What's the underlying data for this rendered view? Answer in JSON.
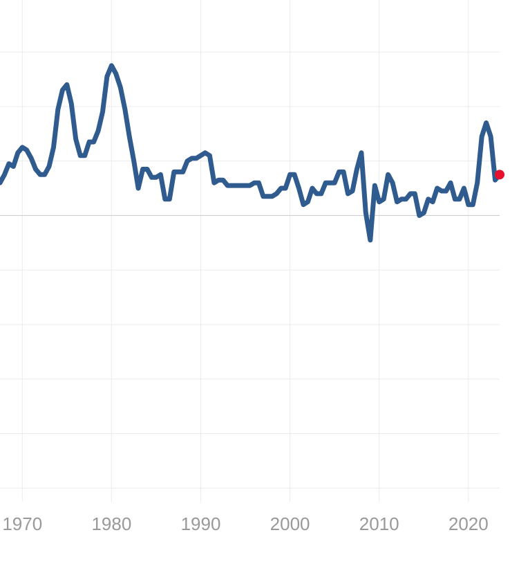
{
  "chart_data": {
    "type": "line",
    "title": "",
    "xlabel": "",
    "ylabel": "",
    "xlim": [
      1967.5,
      2023.5
    ],
    "ylim": [
      -10.5,
      7.5
    ],
    "x_ticks": [
      1970,
      1980,
      1990,
      2000,
      2010,
      2020
    ],
    "x_tick_labels": [
      "1970",
      "1980",
      "1990",
      "2000",
      "2010",
      "2020"
    ],
    "y_gridlines": [
      -10,
      -8,
      -6,
      -4,
      -2,
      0,
      2,
      4,
      6
    ],
    "zero_line": 0,
    "grid": true,
    "colors": {
      "line": "#2f5b8f",
      "marker": "#e8102e",
      "grid": "#ebebeb",
      "zero": "#cfcfcf",
      "tick_text": "#999999"
    },
    "series": [
      {
        "x": [
          1967.5,
          1968,
          1968.5,
          1969,
          1969.5,
          1970,
          1970.5,
          1971,
          1971.5,
          1972,
          1972.5,
          1973,
          1973.5,
          1974,
          1974.5,
          1975,
          1975.5,
          1976,
          1976.5,
          1977,
          1977.5,
          1978,
          1978.5,
          1979,
          1979.5,
          1980,
          1980.5,
          1981,
          1981.5,
          1982,
          1982.5,
          1983,
          1983.5,
          1984,
          1984.5,
          1985,
          1985.5,
          1986,
          1986.5,
          1987,
          1987.5,
          1988,
          1988.5,
          1989,
          1989.5,
          1990,
          1990.5,
          1991,
          1991.5,
          1992,
          1992.5,
          1993,
          1993.5,
          1994,
          1994.5,
          1995,
          1995.5,
          1996,
          1996.5,
          1997,
          1997.5,
          1998,
          1998.5,
          1999,
          1999.5,
          2000,
          2000.5,
          2001,
          2001.5,
          2002,
          2002.5,
          2003,
          2003.5,
          2004,
          2004.5,
          2005,
          2005.5,
          2006,
          2006.5,
          2007,
          2007.5,
          2008,
          2008.5,
          2009,
          2009.5,
          2010,
          2010.5,
          2011,
          2011.5,
          2012,
          2012.5,
          2013,
          2013.5,
          2014,
          2014.5,
          2015,
          2015.5,
          2016,
          2016.5,
          2017,
          2017.5,
          2018,
          2018.5,
          2019,
          2019.5,
          2020,
          2020.5,
          2021,
          2021.5,
          2022,
          2022.5,
          2023,
          2023.5
        ],
        "y": [
          1.2,
          1.5,
          1.9,
          1.8,
          2.3,
          2.5,
          2.4,
          2.1,
          1.7,
          1.5,
          1.5,
          1.8,
          2.5,
          3.9,
          4.6,
          4.8,
          4.1,
          2.8,
          2.2,
          2.2,
          2.7,
          2.7,
          3.1,
          3.8,
          5.1,
          5.5,
          5.2,
          4.7,
          3.9,
          2.9,
          2.0,
          1.0,
          1.7,
          1.7,
          1.4,
          1.4,
          1.5,
          0.6,
          0.6,
          1.6,
          1.6,
          1.6,
          2.0,
          2.1,
          2.1,
          2.2,
          2.3,
          2.2,
          1.2,
          1.3,
          1.3,
          1.1,
          1.1,
          1.1,
          1.1,
          1.1,
          1.1,
          1.2,
          1.2,
          0.7,
          0.7,
          0.7,
          0.8,
          1.0,
          1.0,
          1.5,
          1.5,
          1.0,
          0.4,
          0.5,
          1.0,
          0.8,
          0.8,
          1.2,
          1.2,
          1.2,
          1.6,
          1.6,
          0.8,
          0.9,
          1.7,
          2.3,
          0.1,
          -0.9,
          1.1,
          0.5,
          0.6,
          1.5,
          1.2,
          0.5,
          0.6,
          0.6,
          0.8,
          0.8,
          0.0,
          0.1,
          0.6,
          0.5,
          1.0,
          0.9,
          0.9,
          1.2,
          0.6,
          0.6,
          1.0,
          0.4,
          0.4,
          1.2,
          2.9,
          3.4,
          2.9,
          1.3,
          1.5
        ]
      }
    ],
    "last_point": {
      "x": 2023.5,
      "y": 1.5
    }
  }
}
